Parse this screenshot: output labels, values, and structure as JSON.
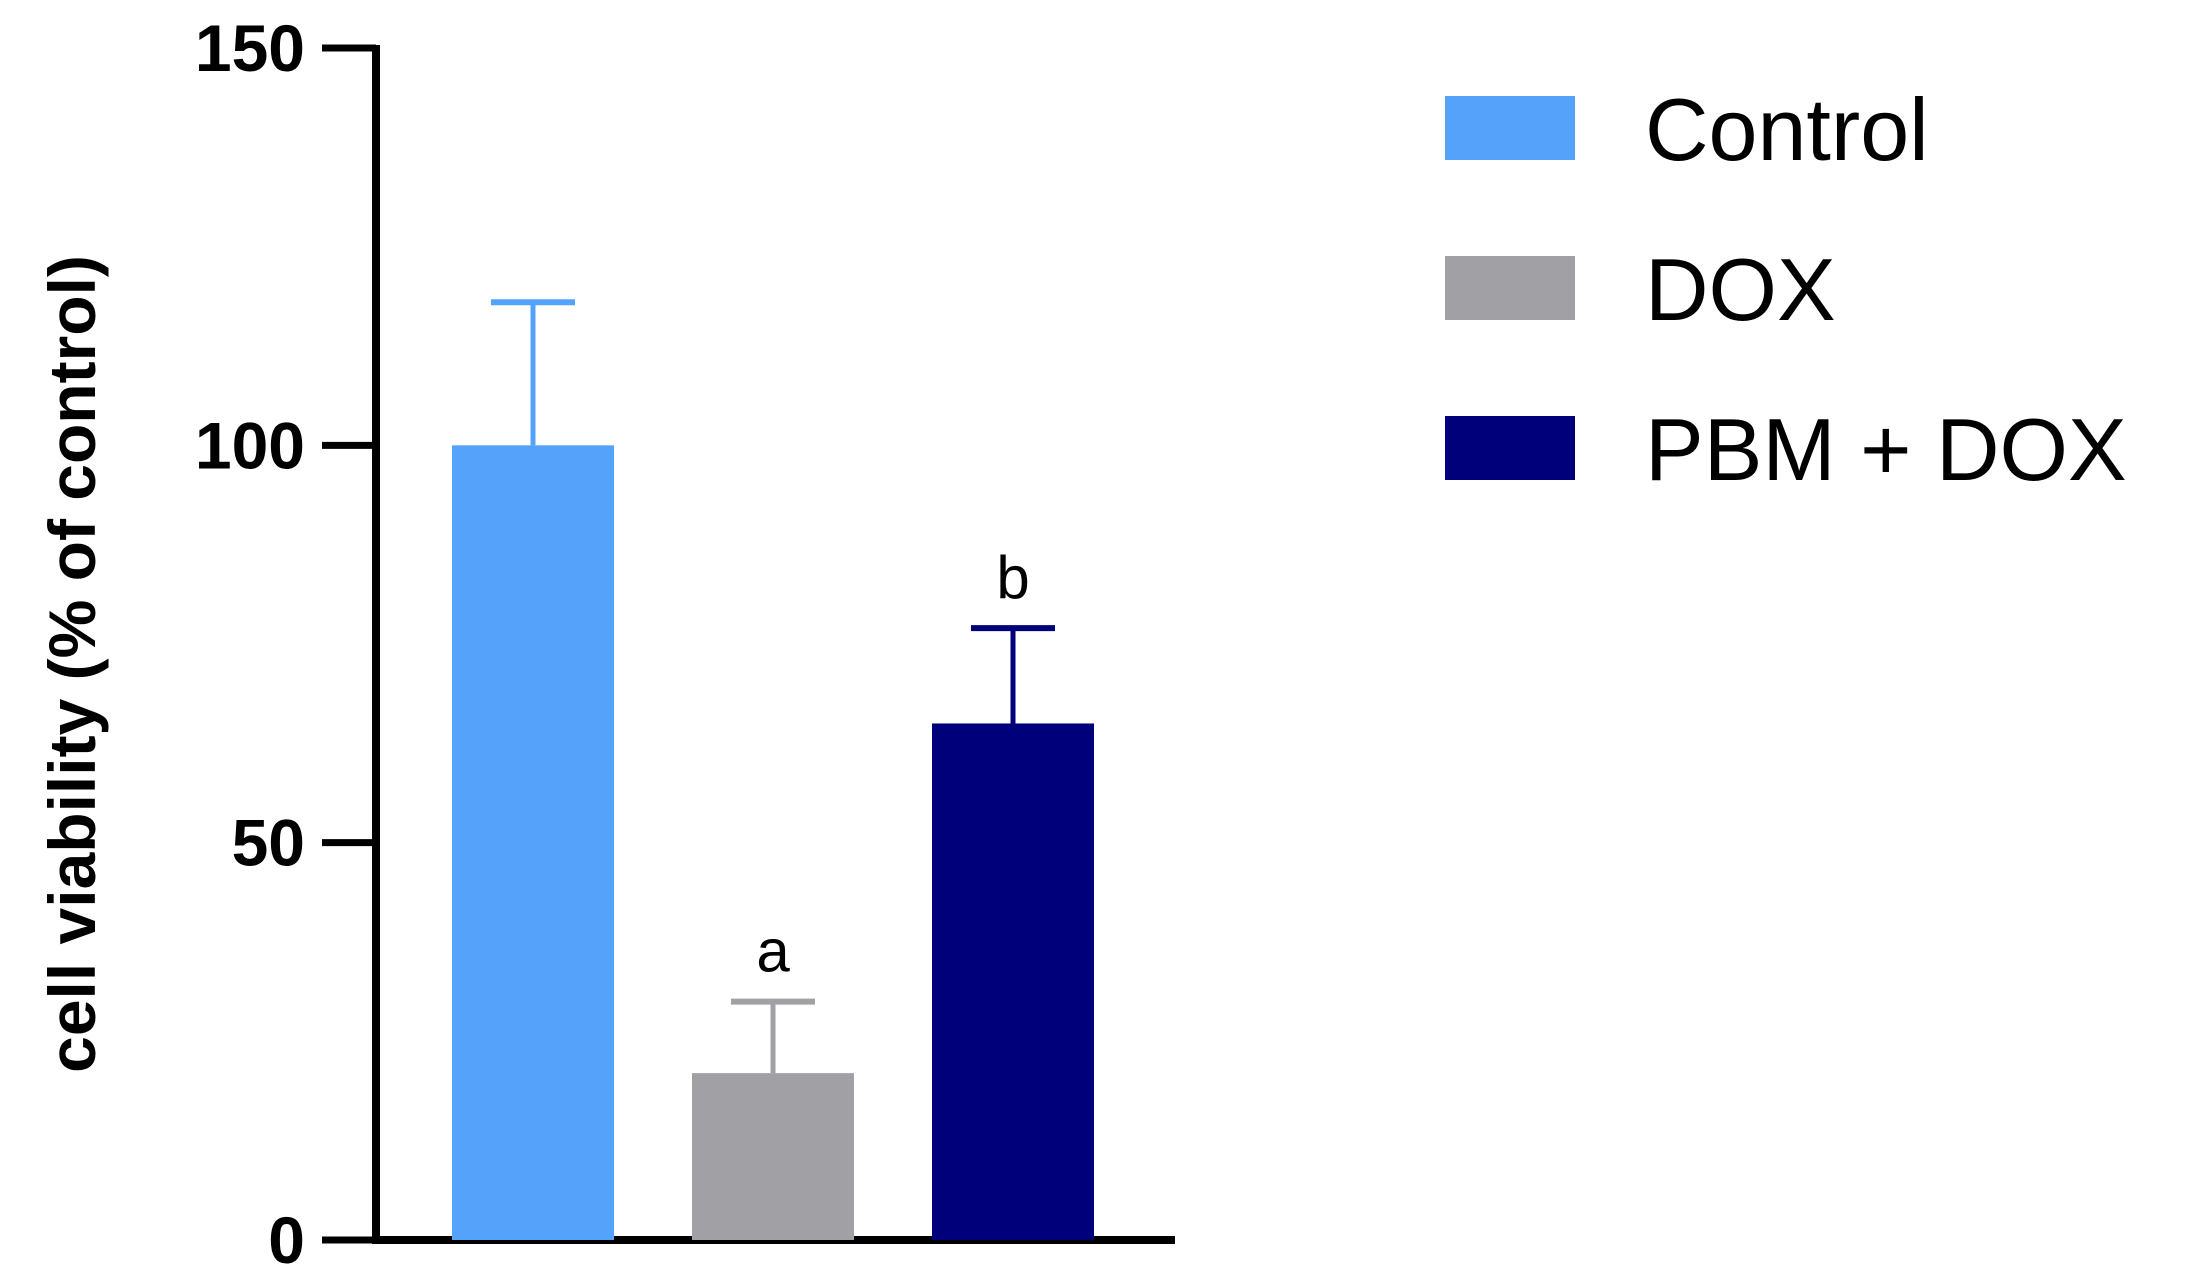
{
  "chart_data": {
    "type": "bar",
    "title": "",
    "xlabel": "",
    "ylabel": "cell viability (% of control)",
    "ylim": [
      0,
      150
    ],
    "yticks": [
      "0",
      "50",
      "100",
      "150"
    ],
    "grid": false,
    "legend_position": "right",
    "series": [
      {
        "name": "Control",
        "value": 100,
        "error": 18,
        "annotation": "",
        "color": "#55a2fb"
      },
      {
        "name": "DOX",
        "value": 21,
        "error": 9,
        "annotation": "a",
        "color": "#a1a1a5"
      },
      {
        "name": "PBM + DOX",
        "value": 65,
        "error": 12,
        "annotation": "b",
        "color": "#00007a"
      }
    ]
  }
}
